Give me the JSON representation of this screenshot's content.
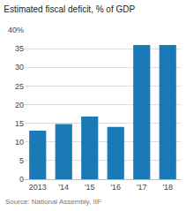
{
  "chart_data": {
    "type": "bar",
    "title": "Estimated fiscal deficit, % of GDP",
    "categories": [
      "2013",
      "'14",
      "'15",
      "'16",
      "'17",
      "'18"
    ],
    "values": [
      13.0,
      14.8,
      16.8,
      14.0,
      36.0,
      36.0
    ],
    "color": "#1a7ab5",
    "ylim": [
      0,
      40
    ],
    "yticks": [
      0,
      5,
      10,
      15,
      20,
      25,
      30,
      35,
      {
        "value": 40,
        "label": "40%"
      }
    ],
    "grid": true,
    "annotations": [
      "Source: National Assembly, IIF"
    ]
  }
}
